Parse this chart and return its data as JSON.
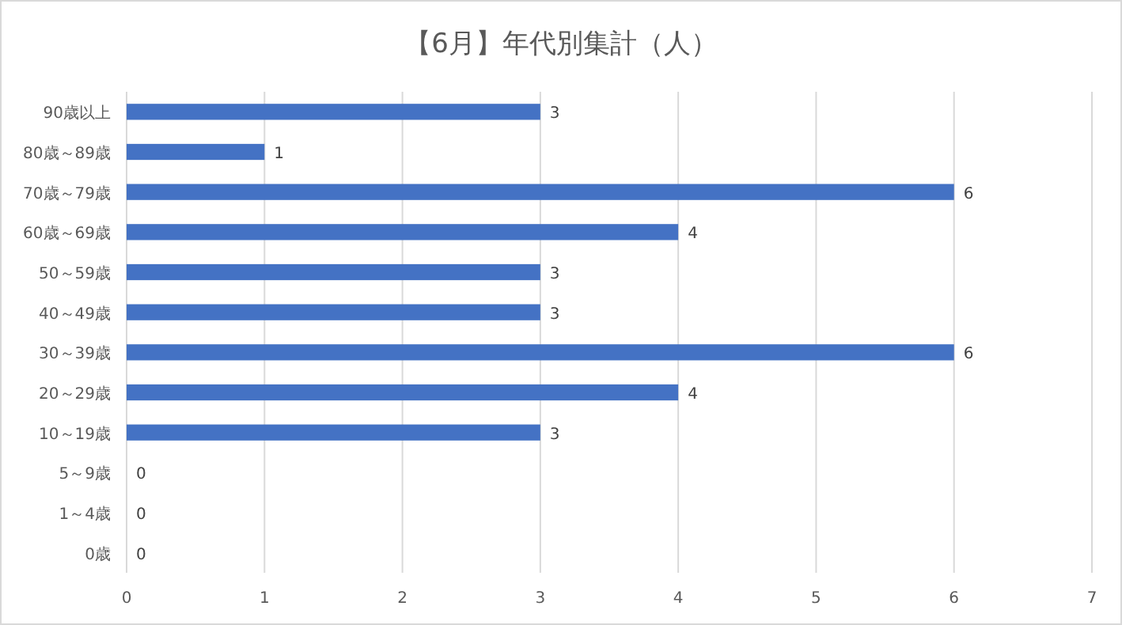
{
  "chart_data": {
    "type": "bar",
    "orientation": "horizontal",
    "title": "【6月】年代別集計（人）",
    "categories": [
      "90歳以上",
      "80歳～89歳",
      "70歳～79歳",
      "60歳～69歳",
      "50～59歳",
      "40～49歳",
      "30～39歳",
      "20～29歳",
      "10～19歳",
      "5～9歳",
      "1～4歳",
      "0歳"
    ],
    "values": [
      3,
      1,
      6,
      4,
      3,
      3,
      6,
      4,
      3,
      0,
      0,
      0
    ],
    "color": "#4472c4",
    "xlim": [
      0,
      7
    ],
    "xticks": [
      0,
      1,
      2,
      3,
      4,
      5,
      6,
      7
    ],
    "grid": "x",
    "data_labels": true
  }
}
